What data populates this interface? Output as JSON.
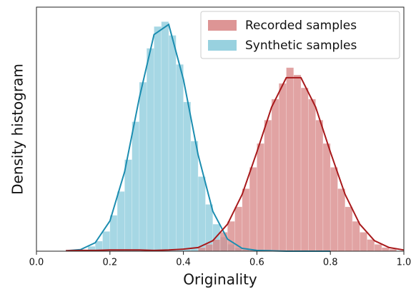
{
  "chart_data": {
    "type": "histogram",
    "x_label": "Originality",
    "y_label": "Density histogram",
    "xlim": [
      0,
      1
    ],
    "ylim": [
      0,
      6.05
    ],
    "xticks": [
      {
        "value": 0,
        "label": "0.0"
      },
      0.2,
      0.4,
      0.6,
      0.8,
      {
        "value": 1,
        "label": "1.0"
      }
    ],
    "legend": "upper right",
    "kde_x": [
      0.08,
      0.12,
      0.16,
      0.2,
      0.24,
      0.28,
      0.32,
      0.36,
      0.4,
      0.44,
      0.48,
      0.52,
      0.56,
      0.6,
      0.64,
      0.68,
      0.72,
      0.76,
      0.8,
      0.84,
      0.88,
      0.92,
      0.96,
      1
    ],
    "series": [
      {
        "name": "Recorded samples",
        "color": "#d98989",
        "line_color": "#a8191b",
        "bins": [
          0.44,
          0.46,
          0.48,
          0.5,
          0.52,
          0.54,
          0.56,
          0.58,
          0.6,
          0.62,
          0.64,
          0.66,
          0.68,
          0.7,
          0.72,
          0.74,
          0.76,
          0.78,
          0.8,
          0.82,
          0.84,
          0.86,
          0.88,
          0.9,
          0.92,
          0.94,
          0.96,
          0.98
        ],
        "values": [
          0.09,
          0.17,
          0.29,
          0.47,
          0.74,
          1.1,
          1.55,
          2.08,
          2.67,
          3.25,
          3.77,
          4.16,
          4.55,
          4.37,
          4.05,
          3.77,
          3.25,
          2.67,
          2.08,
          1.55,
          1.1,
          0.74,
          0.47,
          0.29,
          0.17,
          0.09,
          0.05
        ],
        "kde": [
          0.01,
          0.02,
          0.02,
          0.03,
          0.03,
          0.03,
          0.02,
          0.03,
          0.05,
          0.09,
          0.26,
          0.67,
          1.41,
          2.46,
          3.57,
          4.3,
          4.3,
          3.57,
          2.46,
          1.41,
          0.67,
          0.26,
          0.09,
          0.03
        ]
      },
      {
        "name": "Synthetic samples",
        "color": "#8dccdc",
        "line_color": "#1b8db0",
        "bins": [
          0.14,
          0.16,
          0.18,
          0.2,
          0.22,
          0.24,
          0.26,
          0.28,
          0.3,
          0.32,
          0.34,
          0.36,
          0.38,
          0.4,
          0.42,
          0.44,
          0.46,
          0.48,
          0.5,
          0.52,
          0.54,
          0.56,
          0.58
        ],
        "values": [
          0.12,
          0.25,
          0.49,
          0.89,
          1.48,
          2.27,
          3.21,
          4.19,
          5.03,
          5.57,
          5.69,
          5.35,
          4.63,
          3.7,
          2.73,
          1.85,
          1.16,
          0.67,
          0.35,
          0.17,
          0.08,
          0.03
        ],
        "kde": [
          0.01,
          0.04,
          0.21,
          0.75,
          1.97,
          3.8,
          5.37,
          5.62,
          4.26,
          2.39,
          0.99,
          0.3,
          0.07,
          0.02,
          0.01,
          0,
          0,
          0,
          0,
          null,
          null,
          null,
          null,
          null
        ]
      }
    ]
  }
}
